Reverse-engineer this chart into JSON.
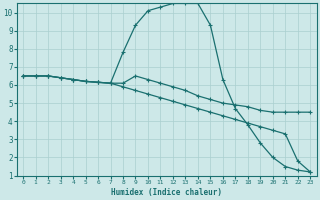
{
  "xlabel": "Humidex (Indice chaleur)",
  "xlim": [
    -0.5,
    23.5
  ],
  "ylim": [
    1,
    10.5
  ],
  "xticks": [
    0,
    1,
    2,
    3,
    4,
    5,
    6,
    7,
    8,
    9,
    10,
    11,
    12,
    13,
    14,
    15,
    16,
    17,
    18,
    19,
    20,
    21,
    22,
    23
  ],
  "yticks": [
    1,
    2,
    3,
    4,
    5,
    6,
    7,
    8,
    9,
    10
  ],
  "bg_color": "#cde8e8",
  "grid_color": "#aacfcf",
  "line_color": "#1a7070",
  "curve1_x": [
    0,
    1,
    2,
    3,
    4,
    5,
    6,
    7,
    8,
    9,
    10,
    11,
    12,
    13,
    14,
    15,
    16,
    17,
    18,
    19,
    20,
    21,
    22,
    23
  ],
  "curve1_y": [
    6.5,
    6.5,
    6.5,
    6.4,
    6.3,
    6.2,
    6.15,
    6.1,
    7.8,
    9.3,
    10.1,
    10.3,
    10.5,
    10.5,
    10.5,
    9.3,
    6.3,
    4.7,
    3.8,
    2.8,
    2.0,
    1.5,
    1.3,
    1.2
  ],
  "curve2_x": [
    0,
    1,
    2,
    3,
    4,
    5,
    6,
    7,
    8,
    9,
    10,
    11,
    12,
    13,
    14,
    15,
    16,
    17,
    18,
    19,
    20,
    21,
    22,
    23
  ],
  "curve2_y": [
    6.5,
    6.5,
    6.5,
    6.4,
    6.3,
    6.2,
    6.15,
    6.1,
    6.1,
    6.5,
    6.3,
    6.1,
    5.9,
    5.7,
    5.4,
    5.2,
    5.0,
    4.9,
    4.8,
    4.6,
    4.5,
    4.5,
    4.5,
    4.5
  ],
  "curve3_x": [
    0,
    1,
    2,
    3,
    4,
    5,
    6,
    7,
    8,
    9,
    10,
    11,
    12,
    13,
    14,
    15,
    16,
    17,
    18,
    19,
    20,
    21,
    22,
    23
  ],
  "curve3_y": [
    6.5,
    6.5,
    6.5,
    6.4,
    6.3,
    6.2,
    6.15,
    6.1,
    5.9,
    5.7,
    5.5,
    5.3,
    5.1,
    4.9,
    4.7,
    4.5,
    4.3,
    4.1,
    3.9,
    3.7,
    3.5,
    3.3,
    1.8,
    1.2
  ]
}
